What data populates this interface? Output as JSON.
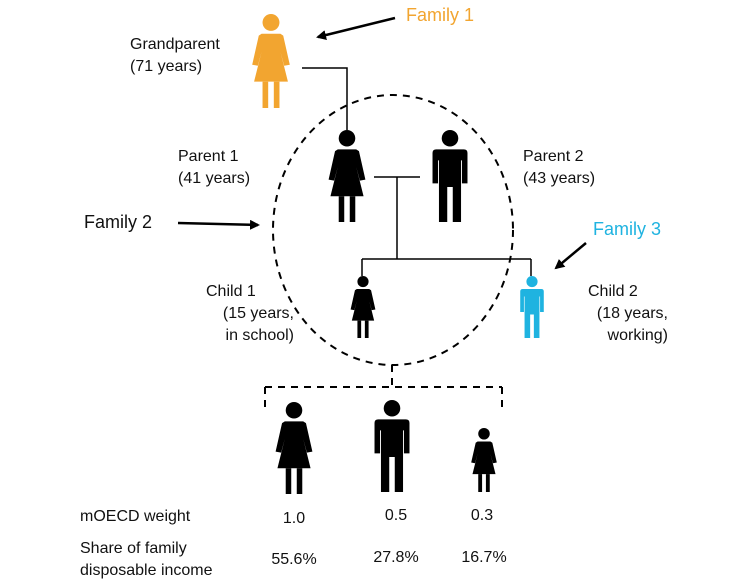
{
  "family_labels": {
    "family1": "Family 1",
    "family2": "Family 2",
    "family3": "Family 3"
  },
  "people": {
    "grandparent": {
      "name": "Grandparent",
      "detail": "(71 years)"
    },
    "parent1": {
      "name": "Parent 1",
      "detail": "(41 years)"
    },
    "parent2": {
      "name": "Parent 2",
      "detail": "(43 years)"
    },
    "child1": {
      "name": "Child 1",
      "detail1": "(15 years,",
      "detail2": "in school)"
    },
    "child2": {
      "name": "Child 2",
      "detail1": "(18 years,",
      "detail2": "working)"
    }
  },
  "table": {
    "weight_label": "mOECD weight",
    "share_label_line1": "Share of family",
    "share_label_line2": "disposable income",
    "weights": [
      "1.0",
      "0.5",
      "0.3"
    ],
    "shares": [
      "55.6%",
      "27.8%",
      "16.7%"
    ]
  },
  "colors": {
    "family1": "#F2A530",
    "family3": "#1FB3E0",
    "default": "#000000"
  },
  "icons": {
    "grandparent": "female-person-icon",
    "parent1": "female-person-icon",
    "parent2": "male-person-icon",
    "child1": "female-person-icon",
    "child2": "male-person-icon"
  }
}
